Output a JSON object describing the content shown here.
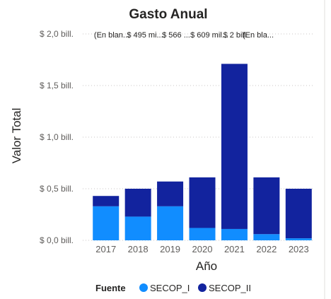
{
  "chart_data": {
    "type": "bar",
    "stacked": true,
    "title": "Gasto Anual",
    "xlabel": "Año",
    "ylabel": "Valor Total",
    "categories": [
      "2017",
      "2018",
      "2019",
      "2020",
      "2021",
      "2022",
      "2023"
    ],
    "y_unit": "bill.",
    "ylim": [
      0,
      2.0
    ],
    "yticks": [
      0,
      0.5,
      1.0,
      1.5,
      2.0
    ],
    "ytick_labels": [
      "$ 0,0 bill.",
      "$ 0,5 bill.",
      "$ 1,0 bill.",
      "$ 1,5 bill.",
      "$ 2,0 bill."
    ],
    "series": [
      {
        "name": "SECOP_I",
        "color": "#118dff",
        "values": [
          0.33,
          0.23,
          0.33,
          0.12,
          0.11,
          0.06,
          0.02
        ]
      },
      {
        "name": "SECOP_II",
        "color": "#12239e",
        "values": [
          0.1,
          0.27,
          0.24,
          0.49,
          1.6,
          0.55,
          0.48
        ]
      }
    ],
    "data_labels": [
      "(En blan...",
      "$ 495 mi...",
      "$ 566 ...",
      "$ 609 mil...",
      "$ 2 bill.",
      "(En bla..."
    ],
    "legend": {
      "title": "Fuente",
      "position": "bottom",
      "items": [
        "SECOP_I",
        "SECOP_II"
      ]
    },
    "grid": true
  }
}
